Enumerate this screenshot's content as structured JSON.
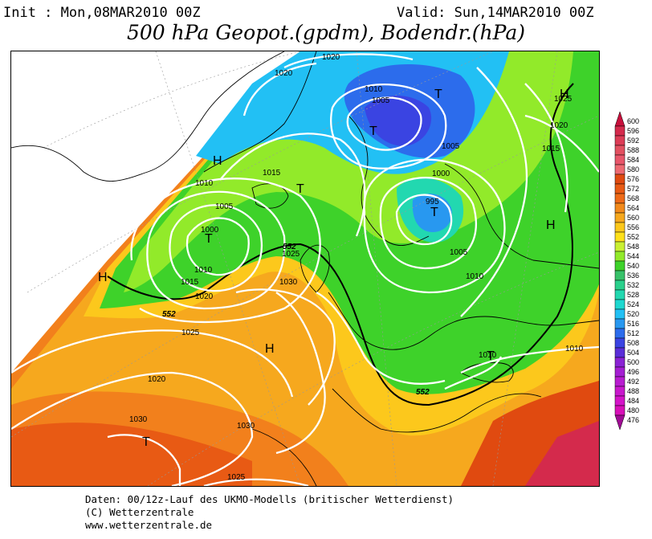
{
  "header": {
    "init": "Init : Mon,08MAR2010 00Z",
    "valid": "Valid: Sun,14MAR2010 00Z",
    "title": "500 hPa Geopot.(gpdm), Bodendr.(hPa)"
  },
  "map": {
    "pressure_systems": [
      {
        "label": "H",
        "name": "high-greenland"
      },
      {
        "label": "T",
        "name": "low-north-atlantic"
      },
      {
        "label": "T",
        "name": "low-norwegian-sea"
      },
      {
        "label": "T",
        "name": "low-scandinavia-north"
      },
      {
        "label": "T",
        "name": "low-baltic"
      },
      {
        "label": "H",
        "name": "high-russia"
      },
      {
        "label": "H",
        "name": "high-northeast-corner"
      },
      {
        "label": "T",
        "name": "low-iceland-south"
      },
      {
        "label": "H",
        "name": "high-azores"
      },
      {
        "label": "H",
        "name": "high-west-edge"
      },
      {
        "label": "T",
        "name": "low-southwest"
      },
      {
        "label": "T",
        "name": "low-black-sea"
      }
    ],
    "isobar_labels": [
      "1020",
      "1020",
      "1010",
      "1005",
      "1005",
      "1000",
      "995",
      "1005",
      "1010",
      "1015",
      "1025",
      "1020",
      "1015",
      "1010",
      "1005",
      "1000",
      "1010",
      "1015",
      "1020",
      "1030",
      "1025",
      "1025",
      "1020",
      "1030",
      "1025",
      "1010",
      "1010",
      "1030"
    ],
    "contour_labels": [
      "552",
      "552",
      "552"
    ]
  },
  "legend": {
    "values": [
      "600",
      "596",
      "592",
      "588",
      "584",
      "580",
      "576",
      "572",
      "568",
      "564",
      "560",
      "556",
      "552",
      "548",
      "544",
      "540",
      "536",
      "532",
      "528",
      "524",
      "520",
      "516",
      "512",
      "508",
      "504",
      "500",
      "496",
      "492",
      "488",
      "484",
      "480",
      "476"
    ],
    "colors": [
      "#c8103c",
      "#d42a4c",
      "#dc3c56",
      "#e25060",
      "#e8566a",
      "#ee6a72",
      "#e04a10",
      "#e85a14",
      "#ee6a18",
      "#f28a1c",
      "#f6a81e",
      "#fcc81c",
      "#fee01a",
      "#caf032",
      "#92ea2a",
      "#3ed22a",
      "#38c26a",
      "#2ad08c",
      "#22d8b0",
      "#1ed8d0",
      "#22c0f4",
      "#2898f0",
      "#2c6cec",
      "#3a44e2",
      "#5a2ed8",
      "#8a22d4",
      "#a41ed2",
      "#b81cd0",
      "#c818cc",
      "#d414c8",
      "#d810b8",
      "#a00c94"
    ]
  },
  "footer": {
    "line1": "Daten: 00/12z-Lauf des UKMO-Modells (britischer Wetterdienst)",
    "line2": "(C) Wetterzentrale",
    "line3": "www.wetterzentrale.de"
  }
}
